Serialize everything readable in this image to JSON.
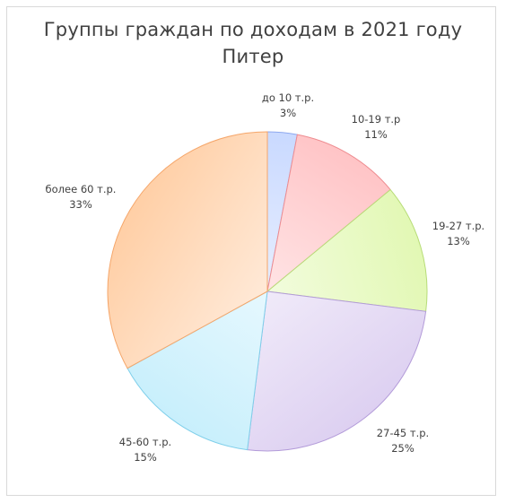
{
  "chart_data": {
    "type": "pie",
    "title": "Группы граждан по доходам в 2021 году",
    "subtitle": "Питер",
    "slices": [
      {
        "label": "до 10 т.р.",
        "value": 3,
        "value_label": "3%",
        "color": "#c9d9ff",
        "stroke": "#8ea9ef"
      },
      {
        "label": "10-19 т.р",
        "value": 11,
        "value_label": "11%",
        "color": "#ffc4c6",
        "stroke": "#ee8c90"
      },
      {
        "label": "19-27 т.р.",
        "value": 13,
        "value_label": "13%",
        "color": "#e2f8b4",
        "stroke": "#b7dc78"
      },
      {
        "label": "27-45 т.р.",
        "value": 25,
        "value_label": "25%",
        "color": "#ddd0f1",
        "stroke": "#b39bd9"
      },
      {
        "label": "45-60 т.р.",
        "value": 15,
        "value_label": "15%",
        "color": "#c8effc",
        "stroke": "#7fcfea"
      },
      {
        "label": "более 60 т.р.",
        "value": 33,
        "value_label": "33%",
        "color": "#ffcfa6",
        "stroke": "#f5a66a"
      }
    ],
    "legend": "none",
    "start_angle": "12 o'clock",
    "direction": "clockwise"
  }
}
